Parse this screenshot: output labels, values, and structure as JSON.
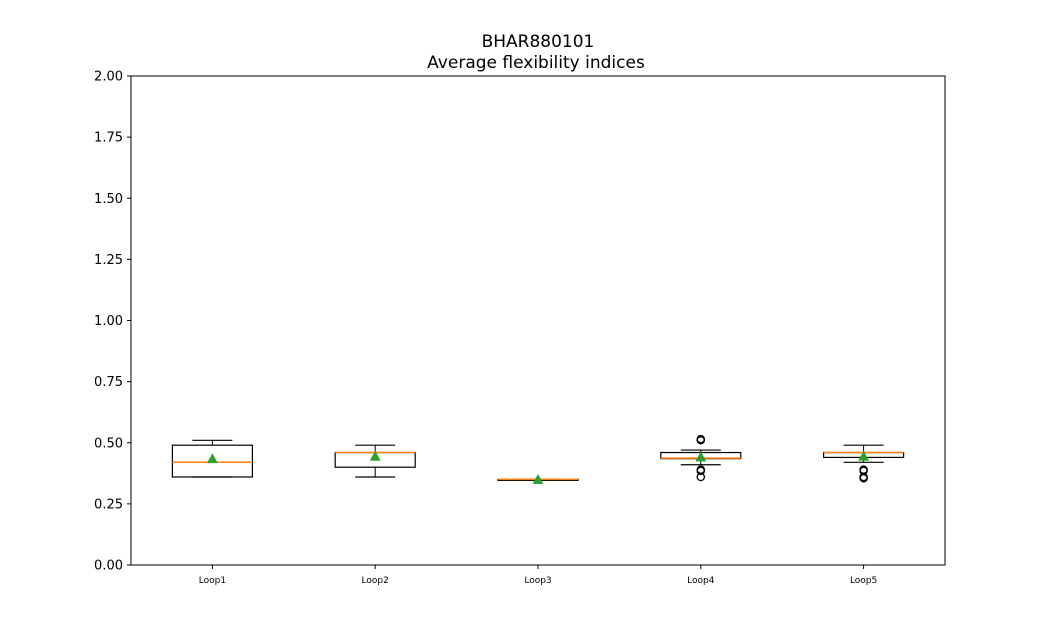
{
  "chart_data": {
    "type": "boxplot",
    "title": "BHAR880101",
    "subtitle": "Average flexibility indices",
    "xlabel": "",
    "ylabel": "",
    "ylim": [
      0,
      2.0
    ],
    "yticks": [
      "0.00",
      "0.25",
      "0.50",
      "0.75",
      "1.00",
      "1.25",
      "1.50",
      "1.75",
      "2.00"
    ],
    "grid": false,
    "categories": [
      "Loop1",
      "Loop2",
      "Loop3",
      "Loop4",
      "Loop5"
    ],
    "boxes": [
      {
        "label": "Loop1",
        "whisker_low": 0.36,
        "q1": 0.36,
        "median": 0.42,
        "q3": 0.49,
        "whisker_high": 0.51,
        "mean": 0.435,
        "outliers": []
      },
      {
        "label": "Loop2",
        "whisker_low": 0.36,
        "q1": 0.4,
        "median": 0.46,
        "q3": 0.46,
        "whisker_high": 0.49,
        "mean": 0.445,
        "outliers": []
      },
      {
        "label": "Loop3",
        "whisker_low": 0.35,
        "q1": 0.35,
        "median": 0.35,
        "q3": 0.35,
        "whisker_high": 0.35,
        "mean": 0.35,
        "outliers": []
      },
      {
        "label": "Loop4",
        "whisker_low": 0.41,
        "q1": 0.435,
        "median": 0.437,
        "q3": 0.46,
        "whisker_high": 0.47,
        "mean": 0.442,
        "outliers": [
          0.51,
          0.515,
          0.39,
          0.385,
          0.36
        ]
      },
      {
        "label": "Loop5",
        "whisker_low": 0.42,
        "q1": 0.44,
        "median": 0.46,
        "q3": 0.46,
        "whisker_high": 0.49,
        "mean": 0.445,
        "outliers": [
          0.39,
          0.385,
          0.36,
          0.355
        ]
      }
    ],
    "colors": {
      "box": "#000000",
      "median": "#ff7f0e",
      "mean": "#2ca02c",
      "outlier": "#000000"
    }
  }
}
